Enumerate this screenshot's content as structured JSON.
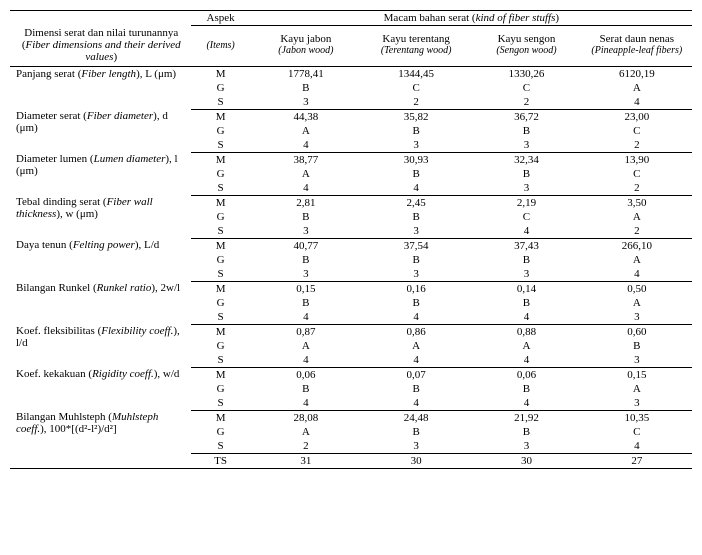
{
  "header": {
    "dim_label": "Dimensi serat dan nilai turunannya (",
    "dim_label_italic": "Fiber dimensions and their derived values",
    "dim_label_close": ")",
    "aspek": "Aspek",
    "aspek_sub": "(Items)",
    "macam": "Macam bahan serat (",
    "macam_italic": "kind of  fiber stuffs",
    "macam_close": ")",
    "cols": [
      {
        "top": "Kayu jabon",
        "sub": "(Jabon wood)"
      },
      {
        "top": "Kayu terentang",
        "sub": "(Terentang wood)"
      },
      {
        "top": "Kayu sengon",
        "sub": "(Sengon wood)"
      },
      {
        "top": "Serat daun nenas",
        "sub": "(Pineapple-leaf fibers)"
      }
    ]
  },
  "aspects": [
    "M",
    "G",
    "S"
  ],
  "ts_label": "TS",
  "rows": [
    {
      "label": "Panjang serat  (",
      "label_it": "Fiber length",
      "label2": "), L (μm)",
      "M": [
        "1778,41",
        "1344,45",
        "1330,26",
        "6120,19"
      ],
      "G": [
        "B",
        "C",
        "C",
        "A"
      ],
      "S": [
        "3",
        "2",
        "2",
        "4"
      ]
    },
    {
      "label": "Diameter serat (",
      "label_it": "Fiber diameter",
      "label2": "), d (μm)",
      "M": [
        "44,38",
        "35,82",
        "36,72",
        "23,00"
      ],
      "G": [
        "A",
        "B",
        "B",
        "C"
      ],
      "S": [
        "4",
        "3",
        "3",
        "2"
      ]
    },
    {
      "label": "Diameter  lumen (",
      "label_it": "Lumen diameter",
      "label2": "), l (μm)",
      "M": [
        "38,77",
        "30,93",
        "32,34",
        "13,90"
      ],
      "G": [
        "A",
        "B",
        "B",
        "C"
      ],
      "S": [
        "4",
        "4",
        "3",
        "2"
      ]
    },
    {
      "label": "Tebal dinding serat (",
      "label_it": "Fiber wall thickness",
      "label2": "), w (μm)",
      "M": [
        "2,81",
        "2,45",
        "2,19",
        "3,50"
      ],
      "G": [
        "B",
        "B",
        "C",
        "A"
      ],
      "S": [
        "3",
        "3",
        "4",
        "2"
      ]
    },
    {
      "label": "Daya tenun (",
      "label_it": "Felting power",
      "label2": "), L/d",
      "M": [
        "40,77",
        "37,54",
        "37,43",
        "266,10"
      ],
      "G": [
        "B",
        "B",
        "B",
        "A"
      ],
      "S": [
        "3",
        "3",
        "3",
        "4"
      ]
    },
    {
      "label": "Bilangan Runkel (",
      "label_it": "Runkel ratio",
      "label2": "), 2w/l",
      "M": [
        "0,15",
        "0,16",
        "0,14",
        "0,50"
      ],
      "G": [
        "B",
        "B",
        "B",
        "A"
      ],
      "S": [
        "4",
        "4",
        "4",
        "3"
      ]
    },
    {
      "label": "Koef. fleksibilitas (",
      "label_it": "Flexibility coeff.",
      "label2": "), l/d",
      "M": [
        "0,87",
        "0,86",
        "0,88",
        "0,60"
      ],
      "G": [
        "A",
        "A",
        "A",
        "B"
      ],
      "S": [
        "4",
        "4",
        "4",
        "3"
      ]
    },
    {
      "label": "Koef. kekakuan (",
      "label_it": "Rigidity coeff.",
      "label2": "), w/d",
      "M": [
        "0,06",
        "0,07",
        "0,06",
        "0,15"
      ],
      "G": [
        "B",
        "B",
        "B",
        "A"
      ],
      "S": [
        "4",
        "4",
        "4",
        "3"
      ]
    },
    {
      "label": "Bilangan Muhlsteph (",
      "label_it": "Muhlsteph coeff.",
      "label2": "), 100*[(d²-l²)/d²]",
      "M": [
        "28,08",
        "24,48",
        "21,92",
        "10,35"
      ],
      "G": [
        "A",
        "B",
        "B",
        "C"
      ],
      "S": [
        "2",
        "3",
        "3",
        "4"
      ]
    }
  ],
  "ts": [
    "31",
    "30",
    "30",
    "27"
  ]
}
